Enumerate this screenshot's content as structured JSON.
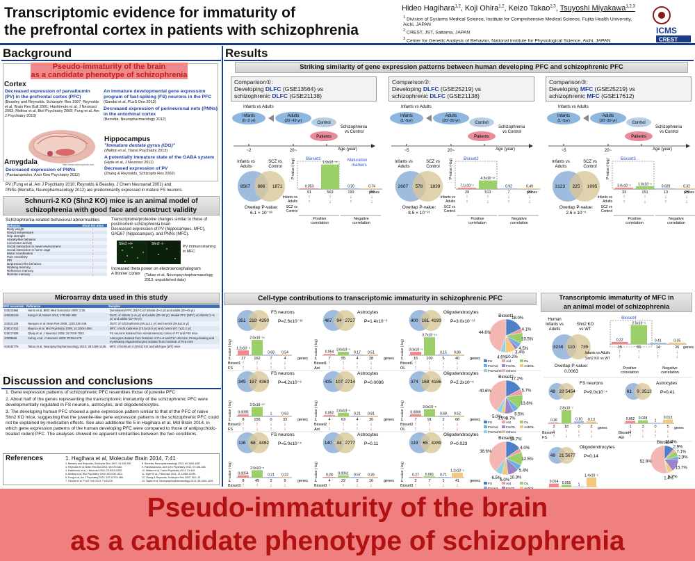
{
  "title": [
    "Transcriptomic evidence for immaturity of",
    "the prefrontal cortex in patients with schizophrenia"
  ],
  "authors": [
    {
      "name": "Hideo Hagihara",
      "sup": "1,2"
    },
    {
      "name": "Koji Ohira",
      "sup": "1,2"
    },
    {
      "name": "Keizo Takao",
      "sup": "2,3"
    },
    {
      "name": "Tsuyoshi Miyakawa",
      "sup": "1,2,3"
    }
  ],
  "affiliations": [
    {
      "sup": "1",
      "text": "Division of Systems Medical Science, Institute for Comprehensive Medical Science, Fujita Health University, Aichi, JAPAN"
    },
    {
      "sup": "2",
      "text": "CREST, JST, Saitama, JAPAN"
    },
    {
      "sup": "3",
      "text": "Center for Genetic Analysis of Behavior, National Institute for Physiological Science, Aichi, JAPAN"
    }
  ],
  "logo": {
    "top": "ICMS",
    "bottom": "CREST",
    "color": "#1b3b8a"
  },
  "background": {
    "heading": "Background",
    "pink": [
      "Pseudo-immaturity of the brain",
      "as a candidate phenotype of schizophrenia"
    ],
    "cortex": "Cortex",
    "c1_title": "Decreased expression of parvalbumin (PV) in the prefrontal cortex (PFC)",
    "c1_ref": "(Beasley and Reynolds, Schizophr Res 1997; Reynolds et al, Brain Res Bull 2001; Hashimoto et al, J Neurosci 2003; Mellios et al, Biol Psychiatry 2009; Fung et al, Am J Psychiatry 2010)",
    "c2_title": "An immature developmental gene expression program of fast-spiking (FS) neurons in the PFC",
    "c2_ref": "(Gandal et al, PLoS One 2013)",
    "c3_title": "Decreased expression of perineuronal nets (PNNs) in the entorhinal cortex",
    "c3_ref": "(Berretta, Neuropharmacology 2012)",
    "hippo": "Hippocampus",
    "h1_title": "\"Immature dentate gyrus (iDG)\"",
    "h1_ref": "(Walton et al, Transl Psychiatry 2013)",
    "h2_title": "A potentially immature state of the GABA system",
    "h2_ref": "(Hyde et al, J Neurosci 2011)",
    "h3_title": "Decreased expression of PV",
    "h3_ref": "(Zhang & Reynolds, Schizophr Res 2002)",
    "amyg": "Amygdala",
    "a1_title": "Decreased expression of PNNs",
    "a1_ref": "(Pantazopoulos, Arch Gen Psychiatry 2012)",
    "pv_note1": "PV (Fung et al, Am J Psychiatry 2010; Reynolds & Beasley, J Chem Neuroanat 2001) and",
    "pv_note2": "PNNs (Berretta, Neuropharmacology 2012) are predominantly expressed in mature FS neurons.",
    "brain_credit": "http://www.sciencephoto.com"
  },
  "shn2": {
    "heading": [
      "Schnurri-2 KO (Shn2 KO) mice is an animal model of",
      "schizophrenia with good face and construct validity"
    ],
    "bullet1": "Schizophrenia-related behavioral abnormalities",
    "th": [
      "Behavior",
      "Shn2 KO mice"
    ],
    "rows": [
      "Body weight",
      "Rectal temperature",
      "Grip strength",
      "Anxiety-like behavior",
      "Locomotor activity",
      "Social interaction in novel environment",
      "Social interaction in home cage",
      "Motor coordination",
      "Pain sensitivity",
      "PPI",
      "Depression-like behavior",
      "Working memory",
      "Reference memory",
      "Remote memory"
    ],
    "arrows": [
      "↓",
      "↓",
      "↓",
      "↓",
      "↑",
      "↓",
      "↓",
      "↓",
      "↑",
      "↓",
      "↓",
      "↓",
      "↓",
      "↓"
    ],
    "b2": "Transcriptome/proteome changes similar to those of postmortem schizophrenia brain",
    "b3": "Decreased expression of PV (hippocampus, MFC), GAD67 (hippocampus), and PNNs (MFC).",
    "img_label_a": "Shn2 +/+",
    "img_label_b": "Shn2 -/-",
    "pv_label": "PV immunostaining in MFC",
    "b4": "Increased theta power on electroencephalogram",
    "b5": "A thinner cortex",
    "b5_ref": "(Takao et al, Neuropsychopharmacology 2013; unpublished data)"
  },
  "microarray": {
    "heading": "Microarray data used in this study",
    "th": [
      "GEO accession",
      "Reference",
      "Samples"
    ],
    "rows": [
      [
        "GSE13564",
        "Harris et al, BMC Med Genomics 2009; 2:28.",
        "Dorsolateral PFC (DLFC) of infants (0~2 yr) and adults (20~49 yr)"
      ],
      [
        "GSE25219",
        "Kang et al, Nature 2011; 478:483-489.",
        "DLFC of infants (1~5 yr) and adults (20~39 yr); Medial PFC (MFC) of infants (1~5 yr) and adults (20~39 yr)"
      ],
      [
        "GSE21138",
        "Narayan et al, Brain Res 2008; 1239:235-248.",
        "DLFC of schizophrenia (26.1±2.1 yr) and control (28.8±2.6 yr)"
      ],
      [
        "GSE17612",
        "Maycox et al, Mol Psychiatry 2009; 14:1083-1094.",
        "MFC of schizophrenia (73.0±18.9 yr) and control (67.7±22.2 yr)"
      ],
      [
        "GSE17806",
        "Okaty et al, J Neurosci 2009; 29:7040-7052.",
        "FS neurons isolated from somatosensory cortex of P7 and P40 mice"
      ],
      [
        "GSE9566",
        "Cahoy et al, J Neurosci 2008; 28:264-278.",
        "Astrocytes isolated from forebrain of P1~8 and P17~30 mice; Premyelinating and myelinating oligodendrocytes isolated from forebrain of P16 mice"
      ],
      [
        "GSE42775",
        "Takao et al, Neuropsychopharmacology 2013; 38:1409-1425.",
        "MFC of Schnurri-2 (Shn2) KO and wild-type (WT) mice"
      ]
    ]
  },
  "discussion": {
    "heading": "Discussion and conclusions",
    "items": [
      "1. Gene expression patterns of schizophrenic PFC resembles those of juvenile PFC",
      "2. About half of the genes representing the transcriptomic immaturity of the schizophrenic PFC were developmentally regulated in FS neurons, astrocytes, and oligodendrocytes.",
      "3. The developing human PFC showed a gene expression pattern similar to that of the PFC of naive Shn2 KO mice, suggesting that the juvenile-like gene expression patterns in the schizophrenic PFC could not be explained by medication effects. See also additional file 5 in Hagihara et al, Mol Brain 2014, in which gene expression patterns of the human developing PFC were compared to those of antipsychotic-treated rodent PFC. The analyses showed no apparent similarities between the two conditions."
    ]
  },
  "references": {
    "heading": "References",
    "main": "1. Hagihara et al, Molecular Brain 2014, 7:41",
    "col1": [
      "2. Beasley and Reynolds, Schizophr Res 1997; 24:349-355.",
      "3. Reynolds et al, Brain Res Bull 2001; 55:579-584.",
      "4. Hashimoto et al, J Neurosci 2003; 23:6315-6326.",
      "5. Mellios et al, Biol Psychiatry 2009; 65:1006-1014.",
      "6. Fung et al, Am J Psychiatry 2010; 167:1479-1488.",
      "7. Gandal et al, PLoS One 2013; 7:e41215."
    ],
    "col2": [
      "8. Berretta, Neuropharmacology 2012; 62:1584-1597.",
      "9. Pantazopoulos, Arch Gen Psychiatry 2012; 67:155-166.",
      "10. Walton et al, Transl Psychiatry 2013; 3:e135.",
      "11. Hyde et al, J Neurosci 2011; 31:11088-11095.",
      "12. Zhang & Reynolds, Schizophr Res 2002; 55:1-10.",
      "13. Takao et al, Neuropsychopharmacology 2013; 38:1409-1425."
    ]
  },
  "results": {
    "heading": "Results",
    "sub1": "Striking similarity of gene expression patterns between human developing PFC and schizophrenic PFC",
    "comparisons": [
      {
        "label": "Comparison①:",
        "line2a": "Developing ",
        "line2b": "DLFC",
        "line2c": " (GSE13564) vs",
        "line3a": "schizophrenic ",
        "line3b": "DLFC",
        "line3c": " (GSE21138)",
        "infants": "Infants",
        "infants_age": "(0~2 yr)",
        "adults": "Adults",
        "adults_age": "(20~49 yr)",
        "tick1": "~2",
        "tick2": "20~",
        "biosets": "Bioset1",
        "a": 9567,
        "b": 886,
        "c": 1871,
        "overlap": "Overlap P-value:",
        "overlap_val": "6.1 × 10⁻³⁸",
        "pv_pos": "0.053",
        "pv_top": "1.0x10⁻⁷⁵",
        "pv_n1": "0.20",
        "pv_n2": "0.74",
        "cnt": [
          "91",
          "563",
          "193",
          "39"
        ]
      },
      {
        "label": "Comparison②:",
        "line2a": "Developing ",
        "line2b": "DLFC",
        "line2c": " (GSE25219) vs",
        "line3a": "schizophrenic ",
        "line3b": "DLFC",
        "line3c": " (GSE21138)",
        "infants": "Infants",
        "infants_age": "(1~5yr)",
        "adults": "Adults",
        "adults_age": "(20~39 yr)",
        "tick1": "~5",
        "tick2": "20~",
        "biosets": "Bioset2",
        "a": 2607,
        "b": 578,
        "c": 1839,
        "overlap": "Overlap P-value:",
        "overlap_val": "8.5 × 10⁻²¹",
        "pv_pos": "7.1x10⁻⁵",
        "pv_top": "4.5x10⁻²⁷",
        "pv_n1": "0.92",
        "pv_n2": "0.49",
        "cnt": [
          "29",
          "513",
          "7",
          "29"
        ]
      },
      {
        "label": "Comparison③:",
        "line2a": "Developing ",
        "line2b": "MFC",
        "line2c": " (GSE25219) vs",
        "line3a": "schizophrenic ",
        "line3b": "MFC",
        "line3c": " (GSE17612)",
        "infants": "Infants",
        "infants_age": "(1~5yr)",
        "adults": "Adults",
        "adults_age": "(20~39 yr)",
        "tick1": "~5",
        "tick2": "20~",
        "biosets": "Bioset3",
        "a": 3123,
        "b": 225,
        "c": 1095,
        "overlap": "Overlap P-value:",
        "overlap_val": "2.6 x 10⁻⁶",
        "pv_pos": "3.6x10⁻⁵",
        "pv_top": "1.6x10⁻⁹",
        "pv_n1": "0.028",
        "pv_n2": "0.32",
        "cnt": [
          "33",
          "151",
          "13",
          "28"
        ]
      }
    ],
    "common": {
      "infants_vs_adults": "Infants vs Adults",
      "control": "Control",
      "patients": "Patients",
      "schizo_vs_control": "Schizophrenia vs Control",
      "age_axis": "Age (year)",
      "venn_left": "Infants vs Adults",
      "venn_right": "SCZ vs Control",
      "pvalue": "P-value (-log)",
      "probes": "probes",
      "pos_corr": "Positive correlation",
      "neg_corr": "Negative correlation",
      "maturation": "Maturation markers",
      "row1": "Infants vs Adults",
      "row2": "SCZ vs Control"
    },
    "sub2": "Cell-type contributions to transcriptomic immaturity in schizophrenic PFC",
    "celltypes": [
      {
        "bs": "Bioset1",
        "cols": [
          {
            "ct": "FS neurons",
            "abbr": "FS",
            "v": [
              351,
              210,
              4350
            ],
            "p": "P=2.6x10⁻¹²",
            "bars": [
              "1.2x10⁻⁵",
              "2.0x10⁻¹⁶",
              "0.68",
              "0.54"
            ],
            "cnt": [
              "17",
              "162",
              "7",
              "4"
            ]
          },
          {
            "ct": "Astrocytes",
            "abbr": "Ast",
            "v": [
              467,
              94,
              2727
            ],
            "p": "P=1.4x10⁻²",
            "bars": [
              "0.054",
              "3.0x10⁻⁴",
              "0.17",
              "0.51"
            ],
            "cnt": [
              "7",
              "55",
              "4",
              "28"
            ]
          },
          {
            "ct": "Oligodendrocytes",
            "abbr": "OL",
            "v": [
              400,
              161,
              4193
            ],
            "p": "P=3.0x10⁻¹¹",
            "bars": [
              "3.0x10⁻⁴",
              "3.7x10⁻¹⁹",
              "0.15",
              "0.86"
            ],
            "cnt": [
              "16",
              "100",
              "5",
              "40"
            ]
          }
        ]
      },
      {
        "bs": "Bioset2",
        "cols": [
          {
            "ct": "FS neurons",
            "abbr": "FS",
            "v": [
              345,
              197,
              4363
            ],
            "p": "P=4.2x10⁻⁸",
            "bars": [
              "0.0095",
              "2.0x10⁻¹⁰",
              "1",
              "0.63"
            ],
            "cnt": [
              "8",
              "156",
              "0",
              "33"
            ]
          },
          {
            "ct": "Astrocytes",
            "abbr": "Ast",
            "v": [
              435,
              107,
              2714
            ],
            "p": "P=0.0086",
            "bars": [
              "0.052",
              "2.0x10⁻⁴",
              "0.21",
              "0.81"
            ],
            "cnt": [
              "4",
              "63",
              "4",
              "36"
            ]
          },
          {
            "ct": "Oligodendrocytes",
            "abbr": "OL",
            "v": [
              374,
              168,
              4186
            ],
            "p": "P=2.3x10⁻⁵",
            "bars": [
              "0.0066",
              "3.0x10⁻⁸",
              "0.68",
              "0.52"
            ],
            "cnt": [
              "7",
              "91",
              "2",
              "68"
            ]
          }
        ]
      },
      {
        "bs": "Bioset3",
        "cols": [
          {
            "ct": "FS neurons",
            "abbr": "FS",
            "v": [
              116,
              68,
              4492
            ],
            "p": "P=5.0x10⁻⁴",
            "bars": [
              "0.0054",
              "2.5x10⁻⁸",
              "0.21",
              "0.22"
            ],
            "cnt": [
              "8",
              "49",
              "2",
              "9"
            ]
          },
          {
            "ct": "Astrocytes",
            "abbr": "Ast",
            "v": [
              140,
              44,
              2777
            ],
            "p": "P=0.11",
            "bars": [
              "0.28",
              "0.0061",
              "0.57",
              "0.26"
            ],
            "cnt": [
              "4",
              "22",
              "2",
              "16"
            ]
          },
          {
            "ct": "Oligodendrocytes",
            "abbr": "OL",
            "v": [
              119,
              65,
              4289
            ],
            "p": "P=0.023",
            "bars": [
              "0.27",
              "0.061",
              "0.71",
              "1.2x10⁻⁵"
            ],
            "cnt": [
              "2",
              "7",
              "1",
              "41"
            ]
          }
        ]
      }
    ],
    "genes": "genes",
    "pie_legend": [
      "FS",
      "Ast",
      "OL",
      "FS/Ast",
      "FS/OL",
      "Ast/OL",
      "FS/Ast/OL",
      "Others"
    ],
    "pie_colors": [
      "#4f7fc9",
      "#f0a0a0",
      "#9bcf6a",
      "#6aaee6",
      "#9a85c9",
      "#f3c77d",
      "#8fd3e8",
      "#f4b6b0"
    ],
    "pies": [
      {
        "title": "Bioset1",
        "values": [
          18.0,
          4.1,
          10.5,
          4.5,
          3.4,
          10.2,
          4.6,
          44.6
        ],
        "labels": [
          "18.0%",
          "4.1%",
          "10.5%",
          "4.5%",
          "3.4%",
          "10.2%",
          "4.6%",
          "44.6%"
        ]
      },
      {
        "title": "Bioset2",
        "values": [
          17.2,
          5.7,
          13.8,
          5.5,
          8.7,
          3.5,
          5.0,
          40.6
        ],
        "labels": [
          "17.2%",
          "5.7%",
          "13.8%",
          "5.5%",
          "8.7%",
          "3.5%",
          "5.0%",
          "40.6%"
        ]
      },
      {
        "title": "Bioset3",
        "values": [
          14.7,
          4.0,
          12.5,
          5.4,
          10.3,
          6.0,
          6.5,
          38.6
        ],
        "labels": [
          "14.7%",
          "4.0%",
          "12.5%",
          "5.4%",
          "10.3%",
          "6.0%",
          "6.5%",
          "38.6%"
        ]
      }
    ],
    "sub3": [
      "Transcriptomic immaturity of MFC in",
      "an animal model of schizophrenia"
    ],
    "animal": {
      "left": "Human Infants vs Adults",
      "right": "Shn2 KO vs WT",
      "v": [
        3238,
        110,
        735
      ],
      "overlap": "Overlap P-value:",
      "overlap_val": "0.0063",
      "bs": "Bioset4",
      "bars": [
        "0.22",
        "2.5x10⁻⁶",
        "0.41",
        "0.35"
      ],
      "cnt": [
        "15",
        "55",
        "14",
        "26"
      ],
      "row1": "Infants vs Adults",
      "row2": "Shn2 KO vs WT"
    },
    "b4cols": [
      {
        "ct": "FS neurons",
        "abbr": "FS",
        "v": [
          48,
          22,
          5454
        ],
        "p": "P=9.0x10⁻⁴",
        "bars": [
          "0.36",
          "2.8x10⁻⁷",
          "0.10",
          "0.13"
        ],
        "cnt": [
          "2",
          "18",
          "0",
          "2"
        ]
      },
      {
        "ct": "Astrocytes",
        "abbr": "Ast",
        "v": [
          61,
          9,
          3512
        ],
        "p": "P=0.41",
        "bars": [
          "0.062",
          "0.028",
          "1",
          "0.013"
        ],
        "cnt": [
          "1",
          "3",
          "0",
          "5"
        ]
      },
      {
        "ct": "Oligodendrocytes",
        "abbr": "OL",
        "v": [
          49,
          21,
          5677
        ],
        "p": "P=0.14",
        "bars": [
          "0.014",
          "0.055",
          "1",
          "1.4x10⁻⁵"
        ],
        "cnt": [
          "4",
          "1",
          "0",
          "12"
        ]
      }
    ],
    "pie4": {
      "title": "Bioset4",
      "values": [
        11.4,
        2.9,
        7.1,
        2.9,
        15.7,
        5.7,
        1.4,
        52.9
      ],
      "labels": [
        "11.4%",
        "2.9%",
        "7.1%",
        "2.9%",
        "15.7%",
        "5.7%",
        "1.4%",
        "52.9%"
      ]
    }
  },
  "banner": [
    "Pseudo-immaturity of the brain",
    "as a candidate phenotype of schizophrenia"
  ]
}
